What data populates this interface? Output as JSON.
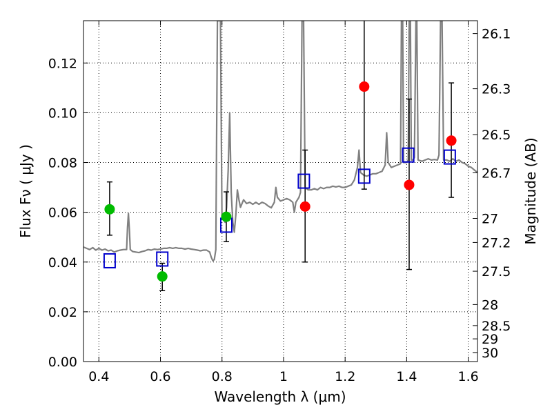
{
  "chart_data": {
    "type": "scatter",
    "xlabel": "Wavelength  λ (μm)",
    "ylabel": "Flux  Fν  ( μJy )",
    "ylabel_right": "Magnitude (AB)",
    "xlim": [
      0.35,
      1.63
    ],
    "ylim": [
      0.0,
      0.137
    ],
    "grid": true,
    "x_ticks": [
      {
        "value": 0.4,
        "label": "0.4"
      },
      {
        "value": 0.6,
        "label": "0.6"
      },
      {
        "value": 0.8,
        "label": "0.8"
      },
      {
        "value": 1.0,
        "label": "1"
      },
      {
        "value": 1.2,
        "label": "1.2"
      },
      {
        "value": 1.4,
        "label": "1.4"
      },
      {
        "value": 1.6,
        "label": "1.6"
      }
    ],
    "y_ticks": [
      {
        "value": 0.0,
        "label": "0.00"
      },
      {
        "value": 0.02,
        "label": "0.02"
      },
      {
        "value": 0.04,
        "label": "0.04"
      },
      {
        "value": 0.06,
        "label": "0.06"
      },
      {
        "value": 0.08,
        "label": "0.08"
      },
      {
        "value": 0.1,
        "label": "0.10"
      },
      {
        "value": 0.12,
        "label": "0.12"
      }
    ],
    "mag_ticks": [
      {
        "value": 26.1,
        "label": "26.1"
      },
      {
        "value": 26.3,
        "label": "26.3"
      },
      {
        "value": 26.5,
        "label": "26.5"
      },
      {
        "value": 26.7,
        "label": "26.7"
      },
      {
        "value": 27.0,
        "label": "27"
      },
      {
        "value": 27.2,
        "label": "27.2"
      },
      {
        "value": 27.5,
        "label": "27.5"
      },
      {
        "value": 28.0,
        "label": "28"
      },
      {
        "value": 28.5,
        "label": "28.5"
      },
      {
        "value": 29.0,
        "label": "29"
      },
      {
        "value": 30.0,
        "label": "30"
      }
    ],
    "colors": {
      "spectrum": "#808080",
      "model_photometry": "#0000cc",
      "optical_points": "#00bb00",
      "nir_points": "#ff0000",
      "errorbar": "#000000",
      "grid": "#000000"
    },
    "model_photometry": [
      {
        "x": 0.435,
        "y": 0.0405
      },
      {
        "x": 0.606,
        "y": 0.0412
      },
      {
        "x": 0.814,
        "y": 0.0548
      },
      {
        "x": 1.066,
        "y": 0.0725
      },
      {
        "x": 1.262,
        "y": 0.0745
      },
      {
        "x": 1.405,
        "y": 0.083
      },
      {
        "x": 1.54,
        "y": 0.0822
      }
    ],
    "observations": [
      {
        "group": "optical",
        "x": 0.435,
        "y": 0.0612,
        "err_low": 0.0508,
        "err_high": 0.0722
      },
      {
        "group": "optical",
        "x": 0.606,
        "y": 0.0342,
        "err_low": 0.0285,
        "err_high": 0.0395
      },
      {
        "group": "optical",
        "x": 0.814,
        "y": 0.0582,
        "err_low": 0.0482,
        "err_high": 0.0682
      },
      {
        "group": "nir",
        "x": 1.07,
        "y": 0.0623,
        "err_low": 0.04,
        "err_high": 0.085
      },
      {
        "group": "nir",
        "x": 1.262,
        "y": 0.1105,
        "err_low": 0.0693,
        "err_high": 0.14
      },
      {
        "group": "nir",
        "x": 1.408,
        "y": 0.071,
        "err_low": 0.037,
        "err_high": 0.1055
      },
      {
        "group": "nir",
        "x": 1.545,
        "y": 0.0888,
        "err_low": 0.066,
        "err_high": 0.112
      }
    ],
    "spectrum": [
      [
        0.35,
        0.046
      ],
      [
        0.36,
        0.0455
      ],
      [
        0.37,
        0.045
      ],
      [
        0.38,
        0.0458
      ],
      [
        0.39,
        0.0448
      ],
      [
        0.4,
        0.0455
      ],
      [
        0.41,
        0.0448
      ],
      [
        0.42,
        0.0452
      ],
      [
        0.43,
        0.0445
      ],
      [
        0.44,
        0.0448
      ],
      [
        0.45,
        0.044
      ],
      [
        0.46,
        0.0445
      ],
      [
        0.47,
        0.0448
      ],
      [
        0.48,
        0.045
      ],
      [
        0.49,
        0.045
      ],
      [
        0.493,
        0.054
      ],
      [
        0.496,
        0.0595
      ],
      [
        0.499,
        0.053
      ],
      [
        0.502,
        0.045
      ],
      [
        0.51,
        0.0442
      ],
      [
        0.52,
        0.044
      ],
      [
        0.53,
        0.0438
      ],
      [
        0.54,
        0.0442
      ],
      [
        0.55,
        0.0445
      ],
      [
        0.56,
        0.045
      ],
      [
        0.57,
        0.0448
      ],
      [
        0.58,
        0.0452
      ],
      [
        0.59,
        0.045
      ],
      [
        0.6,
        0.0452
      ],
      [
        0.61,
        0.0455
      ],
      [
        0.62,
        0.0455
      ],
      [
        0.63,
        0.0458
      ],
      [
        0.64,
        0.0455
      ],
      [
        0.65,
        0.0458
      ],
      [
        0.66,
        0.0455
      ],
      [
        0.67,
        0.0455
      ],
      [
        0.68,
        0.0452
      ],
      [
        0.69,
        0.0455
      ],
      [
        0.7,
        0.0452
      ],
      [
        0.71,
        0.045
      ],
      [
        0.72,
        0.0448
      ],
      [
        0.73,
        0.0445
      ],
      [
        0.74,
        0.0448
      ],
      [
        0.75,
        0.0448
      ],
      [
        0.76,
        0.044
      ],
      [
        0.765,
        0.042
      ],
      [
        0.77,
        0.0405
      ],
      [
        0.775,
        0.041
      ],
      [
        0.78,
        0.045
      ],
      [
        0.785,
        0.137
      ],
      [
        0.79,
        0.137
      ],
      [
        0.795,
        0.137
      ],
      [
        0.8,
        0.058
      ],
      [
        0.805,
        0.057
      ],
      [
        0.81,
        0.056
      ],
      [
        0.815,
        0.062
      ],
      [
        0.82,
        0.077
      ],
      [
        0.825,
        0.1
      ],
      [
        0.83,
        0.068
      ],
      [
        0.835,
        0.056
      ],
      [
        0.84,
        0.052
      ],
      [
        0.845,
        0.059
      ],
      [
        0.85,
        0.069
      ],
      [
        0.855,
        0.065
      ],
      [
        0.86,
        0.062
      ],
      [
        0.87,
        0.065
      ],
      [
        0.88,
        0.0635
      ],
      [
        0.89,
        0.064
      ],
      [
        0.9,
        0.0632
      ],
      [
        0.91,
        0.064
      ],
      [
        0.92,
        0.0632
      ],
      [
        0.93,
        0.064
      ],
      [
        0.94,
        0.0635
      ],
      [
        0.95,
        0.0625
      ],
      [
        0.96,
        0.0618
      ],
      [
        0.97,
        0.064
      ],
      [
        0.975,
        0.07
      ],
      [
        0.98,
        0.066
      ],
      [
        0.99,
        0.0645
      ],
      [
        1.0,
        0.065
      ],
      [
        1.01,
        0.0655
      ],
      [
        1.02,
        0.065
      ],
      [
        1.03,
        0.064
      ],
      [
        1.035,
        0.06
      ],
      [
        1.04,
        0.064
      ],
      [
        1.05,
        0.066
      ],
      [
        1.055,
        0.068
      ],
      [
        1.06,
        0.137
      ],
      [
        1.065,
        0.137
      ],
      [
        1.07,
        0.07
      ],
      [
        1.08,
        0.069
      ],
      [
        1.09,
        0.069
      ],
      [
        1.1,
        0.0695
      ],
      [
        1.11,
        0.069
      ],
      [
        1.12,
        0.07
      ],
      [
        1.13,
        0.0695
      ],
      [
        1.14,
        0.07
      ],
      [
        1.15,
        0.07
      ],
      [
        1.16,
        0.0705
      ],
      [
        1.17,
        0.0702
      ],
      [
        1.18,
        0.0705
      ],
      [
        1.19,
        0.07
      ],
      [
        1.2,
        0.07
      ],
      [
        1.21,
        0.0705
      ],
      [
        1.22,
        0.071
      ],
      [
        1.23,
        0.073
      ],
      [
        1.24,
        0.078
      ],
      [
        1.245,
        0.085
      ],
      [
        1.25,
        0.076
      ],
      [
        1.26,
        0.075
      ],
      [
        1.27,
        0.0745
      ],
      [
        1.28,
        0.075
      ],
      [
        1.29,
        0.0755
      ],
      [
        1.3,
        0.0755
      ],
      [
        1.31,
        0.076
      ],
      [
        1.32,
        0.0765
      ],
      [
        1.33,
        0.079
      ],
      [
        1.335,
        0.092
      ],
      [
        1.34,
        0.08
      ],
      [
        1.35,
        0.078
      ],
      [
        1.36,
        0.0785
      ],
      [
        1.37,
        0.079
      ],
      [
        1.38,
        0.0795
      ],
      [
        1.383,
        0.137
      ],
      [
        1.387,
        0.137
      ],
      [
        1.39,
        0.08
      ],
      [
        1.4,
        0.08
      ],
      [
        1.405,
        0.081
      ],
      [
        1.408,
        0.137
      ],
      [
        1.412,
        0.137
      ],
      [
        1.415,
        0.081
      ],
      [
        1.42,
        0.081
      ],
      [
        1.425,
        0.082
      ],
      [
        1.43,
        0.137
      ],
      [
        1.433,
        0.137
      ],
      [
        1.437,
        0.081
      ],
      [
        1.45,
        0.0805
      ],
      [
        1.46,
        0.081
      ],
      [
        1.47,
        0.0815
      ],
      [
        1.48,
        0.081
      ],
      [
        1.49,
        0.0812
      ],
      [
        1.5,
        0.081
      ],
      [
        1.505,
        0.083
      ],
      [
        1.51,
        0.137
      ],
      [
        1.515,
        0.137
      ],
      [
        1.52,
        0.081
      ],
      [
        1.53,
        0.081
      ],
      [
        1.54,
        0.0805
      ],
      [
        1.55,
        0.0815
      ],
      [
        1.56,
        0.0805
      ],
      [
        1.57,
        0.081
      ],
      [
        1.58,
        0.08
      ],
      [
        1.59,
        0.0795
      ],
      [
        1.6,
        0.0785
      ],
      [
        1.61,
        0.078
      ],
      [
        1.62,
        0.077
      ],
      [
        1.63,
        0.076
      ]
    ]
  }
}
